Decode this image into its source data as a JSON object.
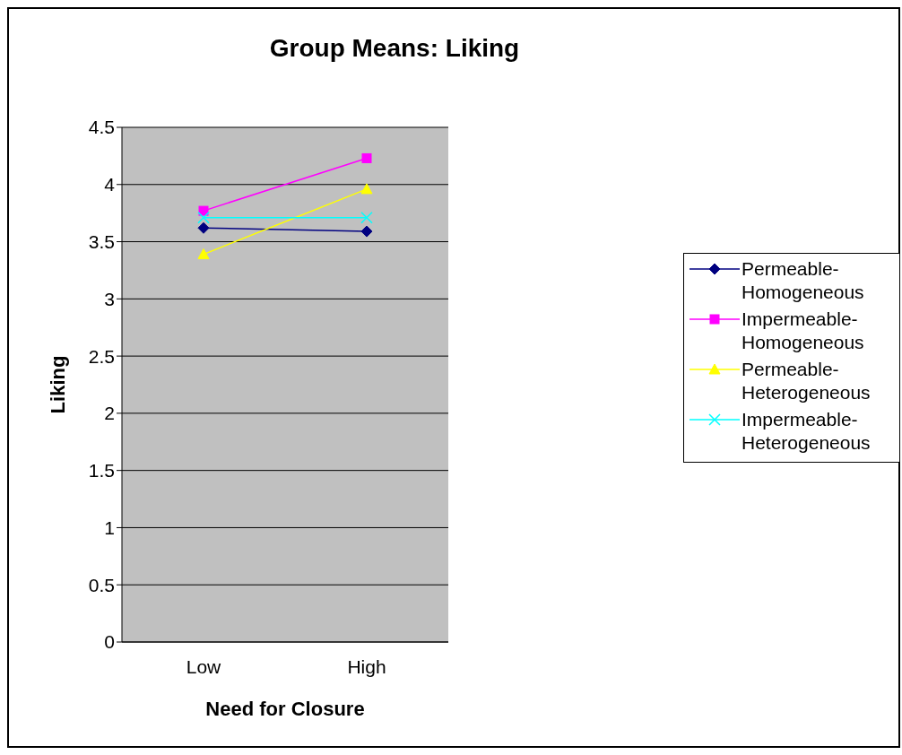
{
  "chart_data": {
    "type": "line",
    "title": "Group Means: Liking",
    "xlabel": "Need for Closure",
    "ylabel": "Liking",
    "categories": [
      "Low",
      "High"
    ],
    "series": [
      {
        "name": "Permeable-Homogeneous",
        "color": "#000080",
        "marker": "diamond",
        "values": [
          3.62,
          3.59
        ]
      },
      {
        "name": "Impermeable-Homogeneous",
        "color": "#ff00ff",
        "marker": "square",
        "values": [
          3.77,
          4.23
        ]
      },
      {
        "name": "Permeable-Heterogeneous",
        "color": "#ffff00",
        "marker": "triangle",
        "values": [
          3.39,
          3.96
        ]
      },
      {
        "name": "Impermeable-Heterogeneous",
        "color": "#00ffff",
        "marker": "cross",
        "values": [
          3.71,
          3.71
        ]
      }
    ],
    "ylim": [
      0,
      4.5
    ],
    "yticks": [
      0,
      0.5,
      1,
      1.5,
      2,
      2.5,
      3,
      3.5,
      4,
      4.5
    ],
    "grid": "y",
    "legend": "right"
  }
}
